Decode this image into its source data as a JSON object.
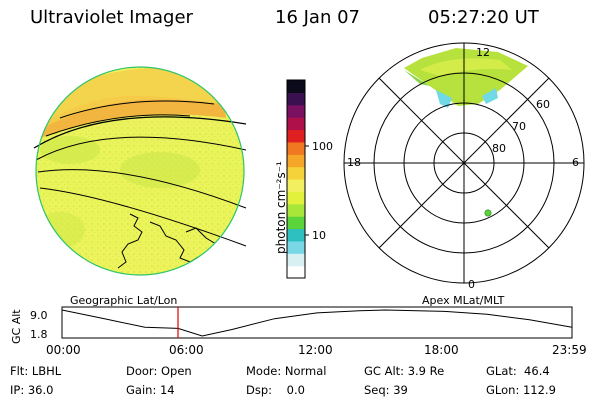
{
  "header": {
    "title": "Ultraviolet Imager",
    "date": "16 Jan 07",
    "time": "05:27:20 UT"
  },
  "colors": {
    "accent": "#dd0000",
    "ground_yellow": "#f0f35a",
    "aurora_orange": "#f2b13e",
    "polar_green": "#a5e03e",
    "polar_cyan": "#6fd9e6"
  },
  "colorbar": {
    "unit_label": "photon cm⁻²s⁻¹",
    "tick_100": "100",
    "tick_10": "10",
    "gradient": [
      "#ffffff",
      "#d8f0f2",
      "#7ad8e6",
      "#2ec0c0",
      "#5ad43a",
      "#a8e63a",
      "#e2f23c",
      "#f2f060",
      "#f5d23a",
      "#f5a628",
      "#f07820",
      "#e02020",
      "#b0104a",
      "#7a1060",
      "#3a1050",
      "#0a0a1a"
    ]
  },
  "globe": {
    "caption": "Geographic Lat/Lon"
  },
  "polar": {
    "caption": "Apex MLat/MLT",
    "mlt_labels": {
      "top": "12",
      "left": "18",
      "right": "6",
      "bottom": "0"
    },
    "lat_labels": [
      "60",
      "70",
      "80"
    ]
  },
  "altitude": {
    "axis_label": "GC Alt",
    "ymax": "9.0",
    "ymin": "1.8",
    "times": [
      "00:00",
      "06:00",
      "12:00",
      "18:00",
      "23:59"
    ],
    "current_time_hours": 5.46,
    "range": [
      1.8,
      9.0
    ],
    "samples": [
      [
        0,
        9.0
      ],
      [
        2.0,
        6.6
      ],
      [
        3.9,
        4.2
      ],
      [
        5.46,
        3.9
      ],
      [
        6.6,
        1.8
      ],
      [
        8.0,
        3.6
      ],
      [
        10.0,
        6.6
      ],
      [
        12.0,
        8.2
      ],
      [
        14.0,
        8.8
      ],
      [
        15.2,
        9.0
      ],
      [
        18.0,
        8.6
      ],
      [
        20.0,
        7.8
      ],
      [
        22.0,
        6.3
      ],
      [
        24.0,
        4.2
      ]
    ]
  },
  "footer": {
    "flt": "Flt: LBHL",
    "ip": "IP: 36.0",
    "door": "Door: Open",
    "gain": "Gain: 14",
    "mode": "Mode: Normal",
    "dsp": "Dsp:    0.0",
    "gcalt": "GC Alt: 3.9 Re",
    "seq": "Seq: 39",
    "glat": "GLat:  46.4",
    "glon": "GLon: 112.9"
  }
}
